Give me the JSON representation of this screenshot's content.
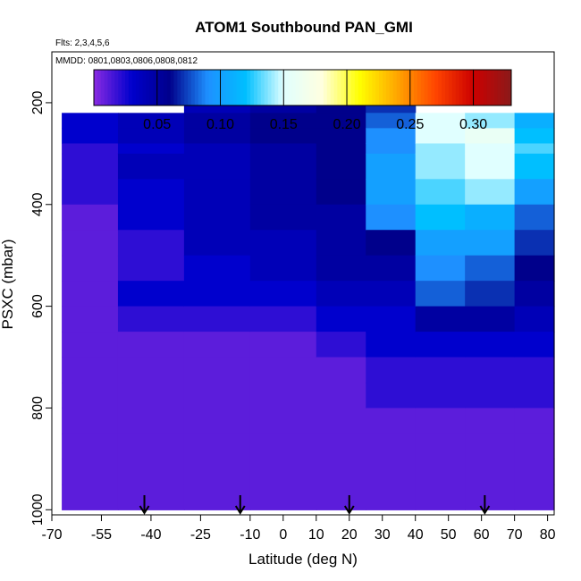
{
  "chart_data": {
    "type": "heatmap",
    "title": "ATOM1 Southbound PAN_GMI",
    "subtitle_flights": "Flts: 2,3,4,5,6",
    "subtitle_dates": "MMDD: 0801,0803,0806,0808,0812",
    "xlabel": "Latitude (deg N)",
    "ylabel": "PSXC (mbar)",
    "xlim": [
      -70,
      82
    ],
    "ylim": [
      1010,
      100
    ],
    "x_ticks": [
      -70,
      -55,
      -40,
      -25,
      -10,
      0,
      10,
      20,
      30,
      40,
      50,
      60,
      70,
      80
    ],
    "x_tick_labels": [
      "-70",
      "-55",
      "-40",
      "-25",
      "-10",
      "0",
      "10",
      "20",
      "30",
      "40",
      "50",
      "60",
      "70",
      "80"
    ],
    "y_ticks": [
      200,
      400,
      600,
      800,
      1000
    ],
    "y_tick_labels": [
      "200",
      "400",
      "600",
      "800",
      "1000"
    ],
    "colorbar": {
      "min": 0.0,
      "max": 0.33,
      "ticks": [
        0.05,
        0.1,
        0.15,
        0.2,
        0.25,
        0.3
      ],
      "tick_labels": [
        "0.05",
        "0.10",
        "0.15",
        "0.20",
        "0.25",
        "0.30"
      ],
      "colors": [
        "#8a2be2",
        "#0000cd",
        "#00008b",
        "#1e90ff",
        "#00bfff",
        "#e0ffff",
        "#ffffe0",
        "#ffff00",
        "#ffa500",
        "#ff4500",
        "#cc0000",
        "#8b1a1a"
      ]
    },
    "pressure_levels": [
      180,
      220,
      250,
      280,
      300,
      350,
      400,
      450,
      500,
      550,
      600,
      650,
      700,
      750,
      800,
      850,
      900,
      950,
      1000
    ],
    "columns": [
      {
        "lon_lat_range": [
          -67,
          -50
        ],
        "top": 220,
        "values": [
          0.02,
          0.03,
          0.03,
          0.02,
          0.02,
          0.02,
          0.01,
          0.01,
          0.01,
          0.01,
          0.01,
          0.01,
          0.01,
          0.01,
          0.01,
          0.01,
          0.01,
          0.01
        ]
      },
      {
        "lon_lat_range": [
          -50,
          -30
        ],
        "top": 220,
        "values": [
          0.04,
          0.04,
          0.04,
          0.03,
          0.04,
          0.03,
          0.03,
          0.02,
          0.02,
          0.03,
          0.02,
          0.01,
          0.01,
          0.01,
          0.01,
          0.01,
          0.01,
          0.01
        ]
      },
      {
        "lon_lat_range": [
          -30,
          -10
        ],
        "top": 180,
        "values": [
          0.04,
          0.05,
          0.05,
          0.04,
          0.04,
          0.04,
          0.04,
          0.04,
          0.03,
          0.03,
          0.02,
          0.01,
          0.01,
          0.01,
          0.01,
          0.01,
          0.01,
          0.01
        ]
      },
      {
        "lon_lat_range": [
          -10,
          10
        ],
        "top": 180,
        "values": [
          0.05,
          0.06,
          0.06,
          0.05,
          0.05,
          0.05,
          0.05,
          0.04,
          0.04,
          0.03,
          0.02,
          0.01,
          0.01,
          0.01,
          0.01,
          0.01,
          0.01,
          0.01
        ]
      },
      {
        "lon_lat_range": [
          10,
          25
        ],
        "top": 180,
        "values": [
          0.06,
          0.06,
          0.06,
          0.06,
          0.06,
          0.06,
          0.05,
          0.05,
          0.05,
          0.04,
          0.03,
          0.02,
          0.01,
          0.01,
          0.01,
          0.01,
          0.01,
          0.01
        ]
      },
      {
        "lon_lat_range": [
          25,
          40
        ],
        "top": 180,
        "values": [
          0.07,
          0.08,
          0.09,
          0.09,
          0.1,
          0.1,
          0.09,
          0.06,
          0.05,
          0.04,
          0.03,
          0.03,
          0.02,
          0.02,
          0.01,
          0.01,
          0.01,
          0.01
        ]
      },
      {
        "lon_lat_range": [
          40,
          55
        ],
        "top": 220,
        "values": [
          0.13,
          0.15,
          0.15,
          0.14,
          0.14,
          0.13,
          0.12,
          0.1,
          0.09,
          0.08,
          0.05,
          0.03,
          0.02,
          0.02,
          0.01,
          0.01,
          0.01,
          0.01
        ]
      },
      {
        "lon_lat_range": [
          55,
          70
        ],
        "top": 220,
        "values": [
          0.12,
          0.14,
          0.16,
          0.15,
          0.15,
          0.14,
          0.11,
          0.1,
          0.08,
          0.07,
          0.05,
          0.03,
          0.02,
          0.02,
          0.01,
          0.01,
          0.01,
          0.01
        ]
      },
      {
        "lon_lat_range": [
          70,
          82
        ],
        "top": 220,
        "values": [
          0.1,
          0.11,
          0.12,
          0.13,
          0.12,
          0.1,
          0.08,
          0.07,
          0.06,
          0.05,
          0.04,
          0.03,
          0.02,
          0.02,
          0.01,
          0.01,
          0.01,
          0.01
        ]
      }
    ],
    "flight_markers_latitudes": [
      -42,
      -13,
      20,
      61
    ],
    "legend_position": "top"
  }
}
